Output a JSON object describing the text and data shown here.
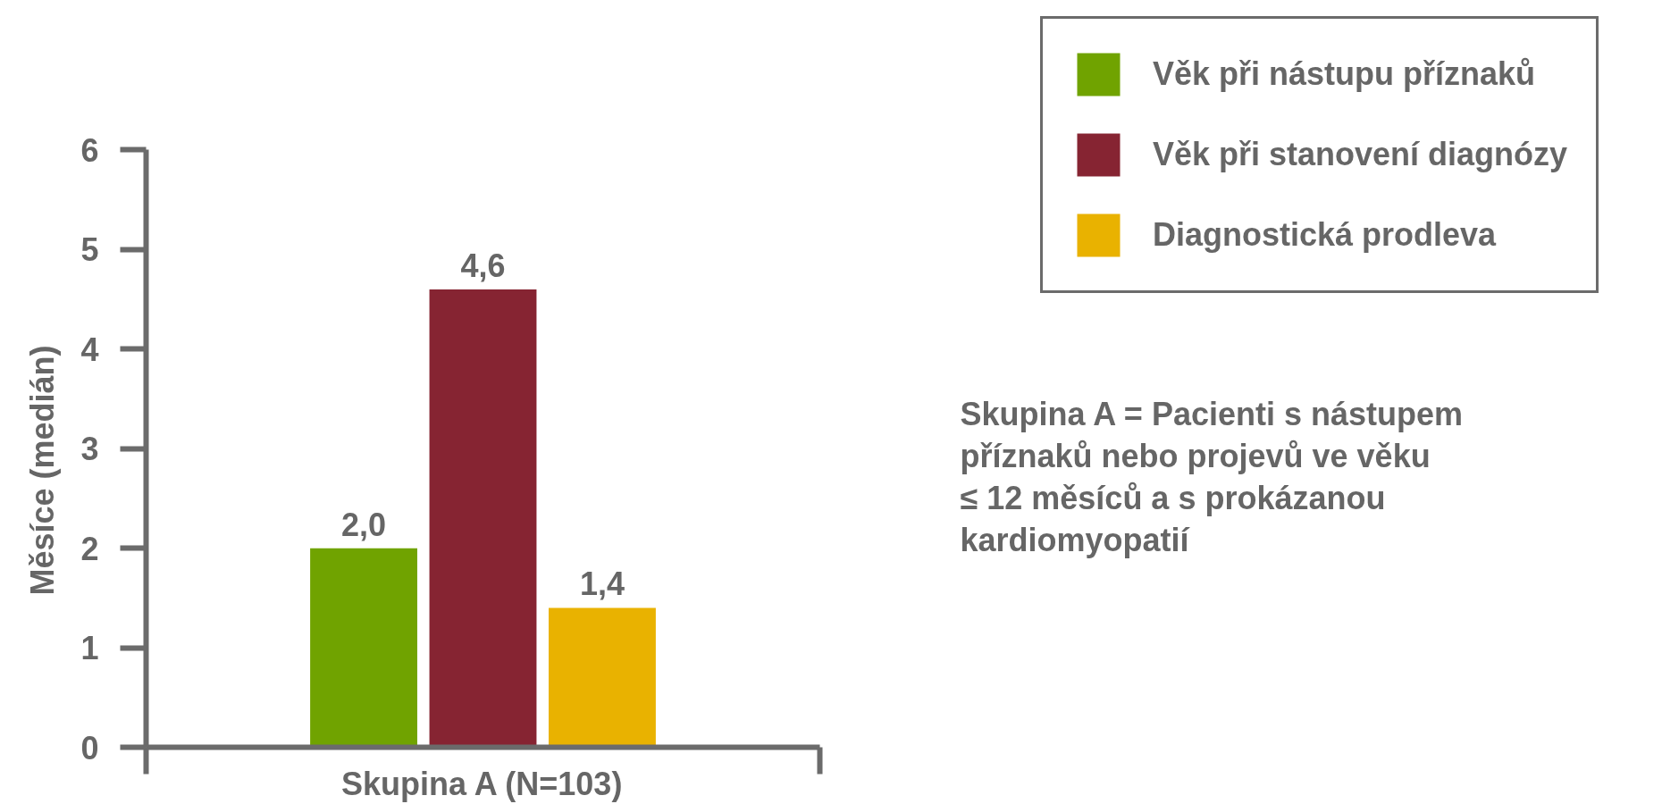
{
  "chart_data": {
    "type": "bar",
    "ylabel": "Měsíce (medián)",
    "categories": [
      "Skupina A (N=103)"
    ],
    "series": [
      {
        "name": "Věk při nástupu příznaků",
        "color": "#70a300",
        "values": [
          2.0
        ],
        "value_labels": [
          "2,0"
        ]
      },
      {
        "name": "Věk při stanovení diagnózy",
        "color": "#862432",
        "values": [
          4.6
        ],
        "value_labels": [
          "4,6"
        ]
      },
      {
        "name": "Diagnostická prodleva",
        "color": "#e9b200",
        "values": [
          1.4
        ],
        "value_labels": [
          "1,4"
        ]
      }
    ],
    "ylim": [
      0,
      6
    ],
    "yticks": [
      0,
      1,
      2,
      3,
      4,
      5,
      6
    ],
    "grid": false,
    "legend": "top right",
    "annotations": [
      "Skupina A = Pacienti s nástupem\npříznaků nebo projevů ve věku\n≤ 12 měsíců a s prokázanou\nkardiomyopatií"
    ]
  }
}
